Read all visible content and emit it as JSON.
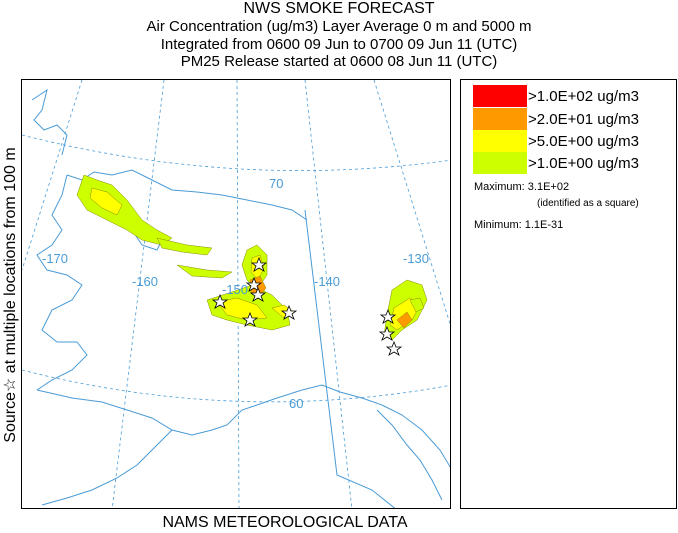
{
  "header": {
    "title": "NWS SMOKE FORECAST",
    "line2": "Air Concentration (ug/m3) Layer Average    0 m and  5000 m",
    "line3": "Integrated from 0600 09 Jun to 0700 09 Jun 11 (UTC)",
    "line4": "PM25 Release started at 0600 08 Jun 11 (UTC)"
  },
  "side_label": "Source☆  at multiple locations   from   100 m",
  "footer": "NAMS METEOROLOGICAL DATA",
  "map": {
    "graticule_labels": {
      "lon_170": "-170",
      "lon_160": "-160",
      "lon_150": "-150",
      "lon_140": "-140",
      "lon_130": "-130",
      "lat_70": "70",
      "lat_60": "60"
    },
    "colors": {
      "coast": "#4a9bd6",
      "grid": "#4a9bd6",
      "level_1": "#ff0000",
      "level_2": "#ff9900",
      "level_3": "#ffff00",
      "level_4": "#ccff00"
    }
  },
  "legend": {
    "entries": [
      {
        "label": ">1.0E+02 ug/m3",
        "color": "#ff0000"
      },
      {
        "label": ">2.0E+01 ug/m3",
        "color": "#ff9900"
      },
      {
        "label": ">5.0E+00 ug/m3",
        "color": "#ffff00"
      },
      {
        "label": ">1.0E+00 ug/m3",
        "color": "#ccff00"
      }
    ],
    "maximum": "Maximum: 3.1E+02",
    "maximum_note": "(identified as a square)",
    "minimum": "Minimum: 1.1E-31"
  }
}
